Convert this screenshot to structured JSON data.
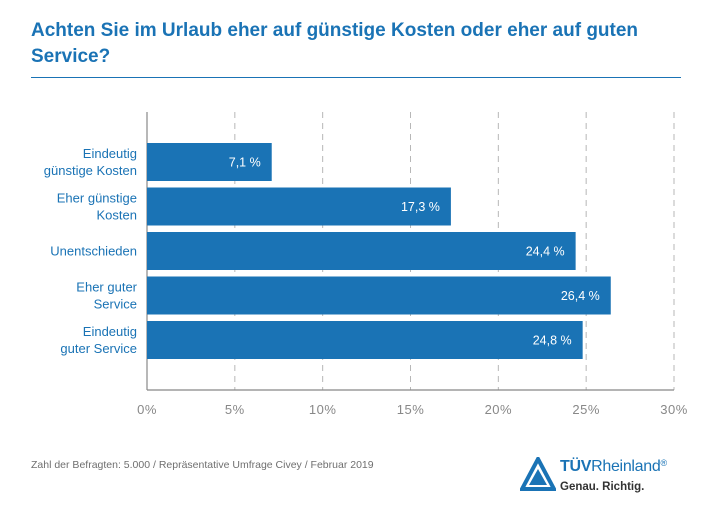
{
  "title": "Achten Sie im Urlaub eher auf günstige Kosten oder eher auf guten Service?",
  "source_note": "Zahl der Befragten: 5.000 / Repräsentative Umfrage Civey / Februar 2019",
  "logo": {
    "brand_bold": "TÜV",
    "brand_light": "Rheinland",
    "registered": "®",
    "slogan": "Genau. Richtig.",
    "icon": "tuv-triangle-icon"
  },
  "colors": {
    "bar": "#1a73b5",
    "accent": "#1a73b5",
    "grid": "#b7b7b7",
    "axis": "#888888",
    "label": "#1a73b5",
    "tick": "#888888"
  },
  "chart_data": {
    "type": "bar",
    "orientation": "horizontal",
    "categories": [
      [
        "Eindeutig",
        "günstige Kosten"
      ],
      [
        "Eher günstige",
        "Kosten"
      ],
      [
        "Unentschieden"
      ],
      [
        "Eher guter",
        "Service"
      ],
      [
        "Eindeutig",
        "guter Service"
      ]
    ],
    "values": [
      7.1,
      17.3,
      24.4,
      26.4,
      24.8
    ],
    "value_labels": [
      "7,1 %",
      "17,3 %",
      "24,4 %",
      "26,4 %",
      "24,8 %"
    ],
    "xlim": [
      0,
      30
    ],
    "xticks": [
      0,
      5,
      10,
      15,
      20,
      25,
      30
    ],
    "xtick_labels": [
      "0%",
      "5%",
      "10%",
      "15%",
      "20%",
      "25%",
      "30%"
    ],
    "grid": true,
    "legend": "none"
  }
}
